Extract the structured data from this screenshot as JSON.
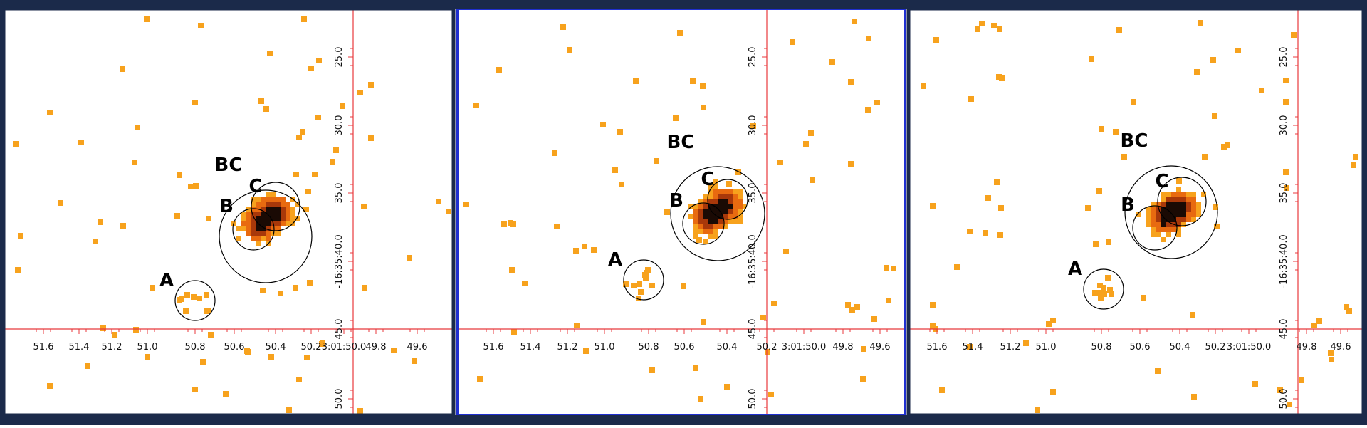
{
  "colors": {
    "background": "#ffffff",
    "panel_border": "#1b2a4a",
    "selected_panel_border": "#1f2fd0",
    "crosshair": "#e8393c",
    "pixel_low": "#f7a21d",
    "pixel_mid": "#e86a10",
    "pixel_high": "#a8380a",
    "pixel_peak": "#1a0a04",
    "circle": "#000000"
  },
  "panels": [
    {
      "name": "panel-left",
      "selected": false,
      "x_ticks": [
        "51.6",
        "51.4",
        "51.2",
        "51.0",
        "50.8",
        "50.6",
        "50.4",
        "50.2",
        "3:01:50.0",
        "49.8",
        "49.6"
      ],
      "y_ticks": [
        "25.0",
        "30.0",
        "35.0",
        "-16:35:40.0",
        "45.0",
        "50.0"
      ],
      "regions": [
        {
          "label": "BC",
          "kind": "source-region"
        },
        {
          "label": "C",
          "kind": "source-region"
        },
        {
          "label": "B",
          "kind": "source-region"
        },
        {
          "label": "A",
          "kind": "source-region"
        }
      ]
    },
    {
      "name": "panel-middle",
      "selected": true,
      "x_ticks": [
        "51.6",
        "51.4",
        "51.2",
        "51.0",
        "50.8",
        "50.6",
        "50.4",
        "50.2",
        "3:01:50.0",
        "49.8",
        "49.6"
      ],
      "y_ticks": [
        "25.0",
        "30.0",
        "35.0",
        "-16:35:40.0",
        "45.0",
        "50.0"
      ],
      "regions": [
        {
          "label": "BC",
          "kind": "source-region"
        },
        {
          "label": "C",
          "kind": "source-region"
        },
        {
          "label": "B",
          "kind": "source-region"
        },
        {
          "label": "A",
          "kind": "source-region"
        }
      ]
    },
    {
      "name": "panel-right",
      "selected": false,
      "x_ticks": [
        "51.6",
        "51.4",
        "51.2",
        "51.0",
        "50.8",
        "50.6",
        "50.4",
        "50.2",
        "3:01:50.0",
        "49.8",
        "49.6"
      ],
      "y_ticks": [
        "25.0",
        "30.0",
        "35.0",
        "-16:35:40.0",
        "45.0",
        "50.0"
      ],
      "regions": [
        {
          "label": "BC",
          "kind": "source-region"
        },
        {
          "label": "C",
          "kind": "source-region"
        },
        {
          "label": "B",
          "kind": "source-region"
        },
        {
          "label": "A",
          "kind": "source-region"
        }
      ]
    }
  ]
}
